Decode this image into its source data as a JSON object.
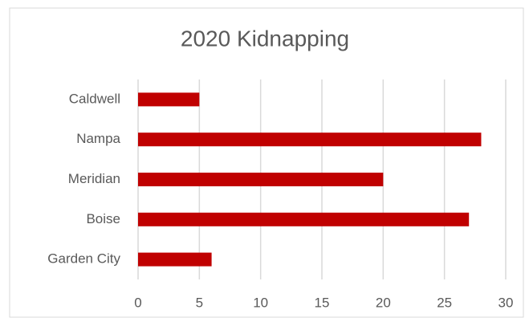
{
  "chart_data": {
    "type": "bar",
    "orientation": "horizontal",
    "title": "2020 Kidnapping",
    "categories": [
      "Caldwell",
      "Nampa",
      "Meridian",
      "Boise",
      "Garden City"
    ],
    "values": [
      5,
      28,
      20,
      27,
      6
    ],
    "color": "#c00000",
    "xlim": [
      0,
      30
    ],
    "xticks": [
      0,
      5,
      10,
      15,
      20,
      25,
      30
    ],
    "grid": true
  }
}
